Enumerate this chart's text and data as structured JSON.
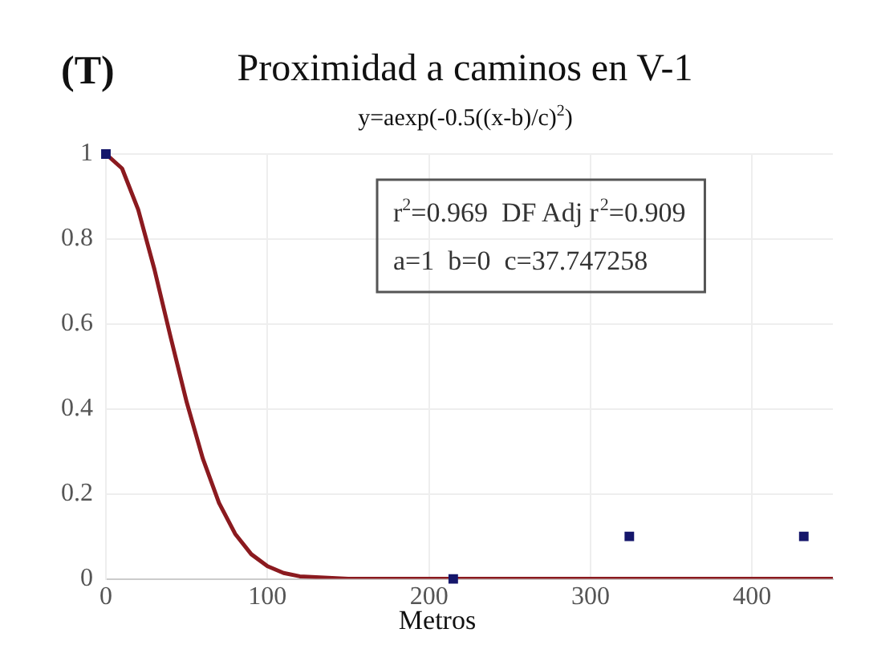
{
  "chart_data": {
    "type": "scatter",
    "title": "Proximidad a caminos en V-1",
    "subtitle": "y=aexp(-0.5((x-b)/c)$^{2}$)",
    "xlabel": "Metros",
    "annotations": [
      "(T)",
      "r$^{2}$=0.969  DF Adj r$^{2}$=0.909",
      "a=1  b=0  c=37.747258"
    ],
    "xlim": [
      0,
      450
    ],
    "xticks": [
      0,
      100,
      200,
      300,
      400
    ],
    "ylim": [
      0,
      1
    ],
    "yticks": [
      0,
      0.2,
      0.4,
      0.6,
      0.8,
      1
    ],
    "grid": true,
    "legend": false,
    "series": [
      {
        "type": "scatter",
        "color": "#15166b",
        "marker": "square",
        "x": [
          0,
          215,
          324,
          432
        ],
        "values": [
          1,
          0,
          0.1,
          0.1
        ]
      },
      {
        "type": "line",
        "color": "#8b1a1f",
        "marker": "none",
        "line_style": "solid",
        "x": [
          0,
          10,
          20,
          30,
          40,
          50,
          60,
          70,
          80,
          90,
          100,
          110,
          120,
          150,
          200,
          300,
          450
        ],
        "values": [
          1,
          0.966,
          0.869,
          0.729,
          0.57,
          0.416,
          0.283,
          0.179,
          0.106,
          0.058,
          0.03,
          0.014,
          0.006,
          0,
          0,
          0,
          0
        ]
      }
    ]
  }
}
